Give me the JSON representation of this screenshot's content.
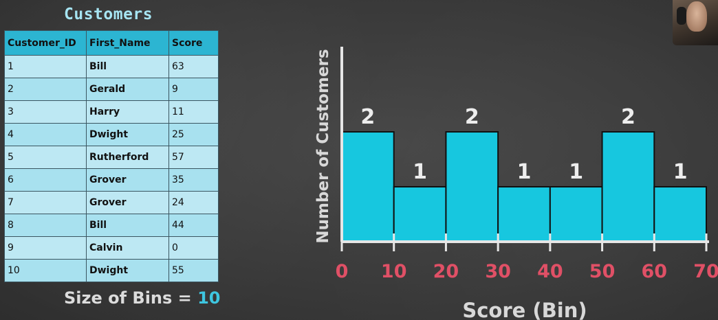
{
  "table": {
    "title": "Customers",
    "columns": [
      "Customer_ID",
      "First_Name",
      "Score"
    ],
    "rows": [
      [
        "1",
        "Bill",
        "63"
      ],
      [
        "2",
        "Gerald",
        "9"
      ],
      [
        "3",
        "Harry",
        "11"
      ],
      [
        "4",
        "Dwight",
        "25"
      ],
      [
        "5",
        "Rutherford",
        "57"
      ],
      [
        "6",
        "Grover",
        "35"
      ],
      [
        "7",
        "Grover",
        "24"
      ],
      [
        "8",
        "Bill",
        "44"
      ],
      [
        "9",
        "Calvin",
        "0"
      ],
      [
        "10",
        "Dwight",
        "55"
      ]
    ]
  },
  "bin_size": {
    "label": "Size of Bins = ",
    "value": "10"
  },
  "chart_data": {
    "type": "bar",
    "bins": [
      [
        0,
        10
      ],
      [
        10,
        20
      ],
      [
        20,
        30
      ],
      [
        30,
        40
      ],
      [
        40,
        50
      ],
      [
        50,
        60
      ],
      [
        60,
        70
      ]
    ],
    "values": [
      2,
      1,
      2,
      1,
      1,
      2,
      1
    ],
    "data_labels": [
      "2",
      "1",
      "2",
      "1",
      "1",
      "2",
      "1"
    ],
    "x_ticks": [
      "0",
      "10",
      "20",
      "30",
      "40",
      "50",
      "60",
      "70"
    ],
    "xlabel": "Score (Bin)",
    "ylabel": "Number of Customers",
    "xlim": [
      0,
      70
    ],
    "grid": false,
    "colors": {
      "bar_fill": "#17c7df",
      "bar_stroke": "#111111",
      "tick_label": "#e05066",
      "axis": "#e6e6e6",
      "label_text": "#ededed"
    }
  },
  "colors": {
    "background": "#3a3a3a",
    "table_header": "#2cb5d2",
    "table_cell": "#bde8f3",
    "title": "#a6e4f2",
    "bin_value": "#3ec6e0"
  },
  "webcam": {
    "icon": "presenter-webcam"
  }
}
